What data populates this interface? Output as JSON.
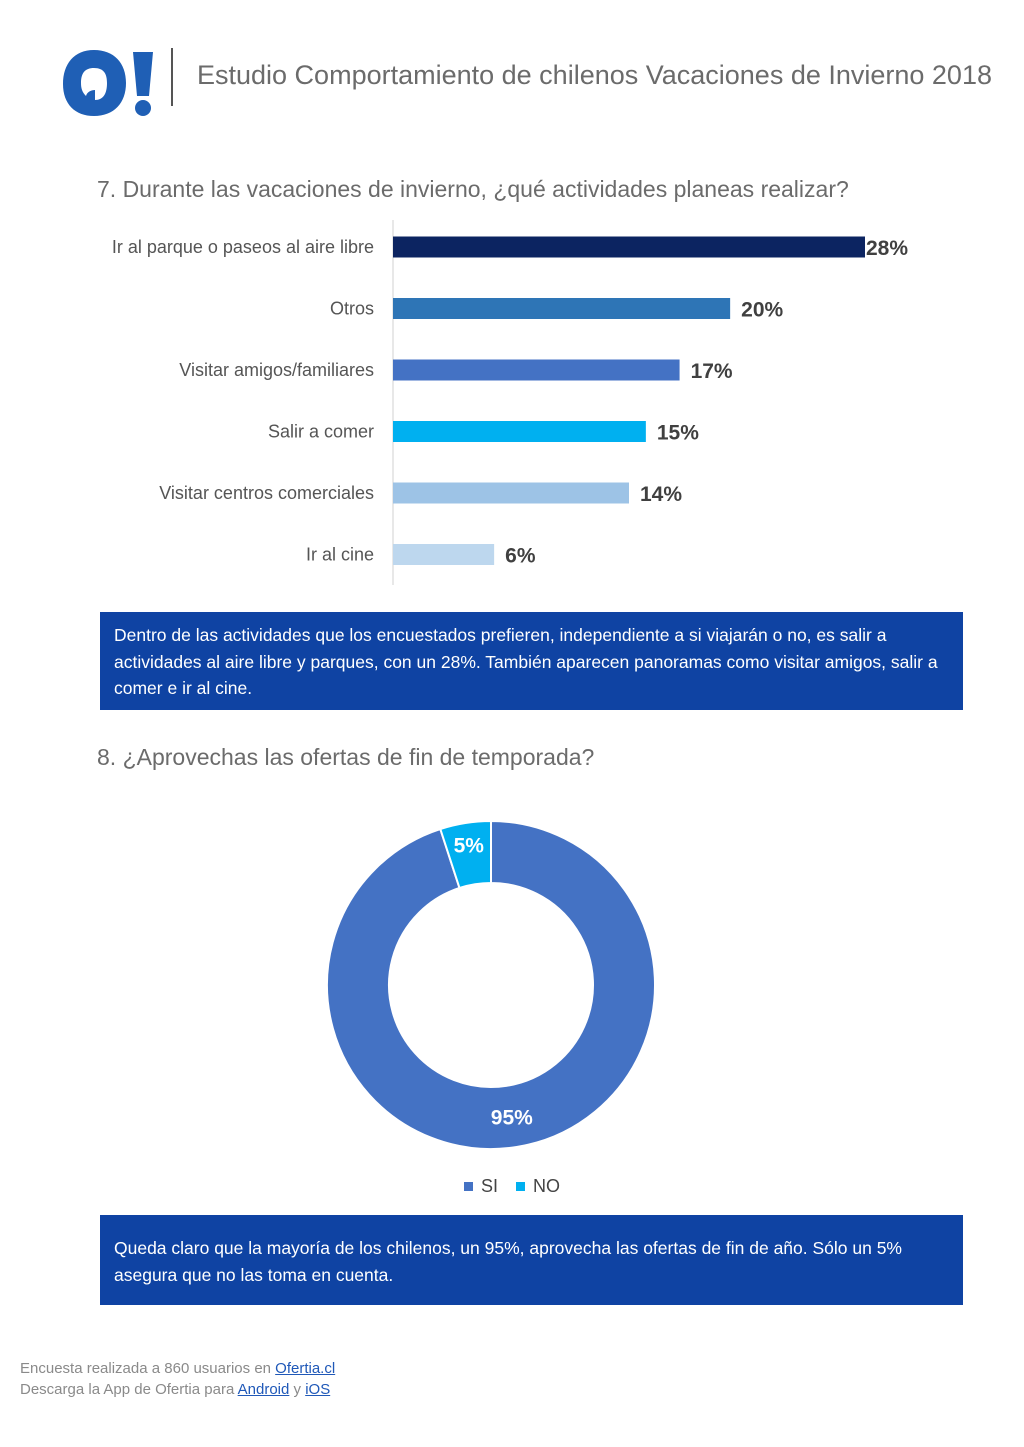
{
  "header": {
    "logo_text": "O!",
    "title": "Estudio Comportamiento de chilenos Vacaciones de Invierno 2018"
  },
  "q7": {
    "title": "7. Durante las vacaciones de invierno, ¿qué actividades planeas realizar?",
    "summary": "Dentro de las actividades que los encuestados prefieren, independiente a si viajarán o no, es salir a actividades al aire libre y parques, con un 28%. También aparecen panoramas como visitar amigos, salir a comer e ir al cine."
  },
  "q8": {
    "title": "8. ¿Aprovechas las ofertas de fin de temporada?",
    "summary": "Queda claro que la mayoría de los chilenos, un 95%, aprovecha las ofertas de fin de año. Sólo un 5% asegura que no las toma en cuenta."
  },
  "chart_data": [
    {
      "type": "bar",
      "orientation": "horizontal",
      "categories": [
        "Ir al parque o paseos al aire libre",
        "Otros",
        "Visitar amigos/familiares",
        "Salir a comer",
        "Visitar centros comerciales",
        "Ir al cine"
      ],
      "values": [
        28,
        20,
        17,
        15,
        14,
        6
      ],
      "value_labels": [
        "28%",
        "20%",
        "17%",
        "15%",
        "14%",
        "6%"
      ],
      "colors": [
        "#0c2461",
        "#2e75b6",
        "#4472c4",
        "#00b0f0",
        "#9dc3e6",
        "#bdd7ee"
      ],
      "grid": false
    },
    {
      "type": "pie",
      "donut": true,
      "categories": [
        "SI",
        "NO"
      ],
      "values": [
        95,
        5
      ],
      "value_labels": [
        "95%",
        "5%"
      ],
      "colors": [
        "#4472c4",
        "#00b0f0"
      ],
      "legend": "bottom"
    }
  ],
  "footer": {
    "line1_text": "Encuesta realizada a 860 usuarios en ",
    "line1_link": "Ofertia.cl",
    "line2_text": "Descarga la App de Ofertia para ",
    "line2_link1": "Android",
    "line2_sep": " y ",
    "line2_link2": "iOS"
  }
}
